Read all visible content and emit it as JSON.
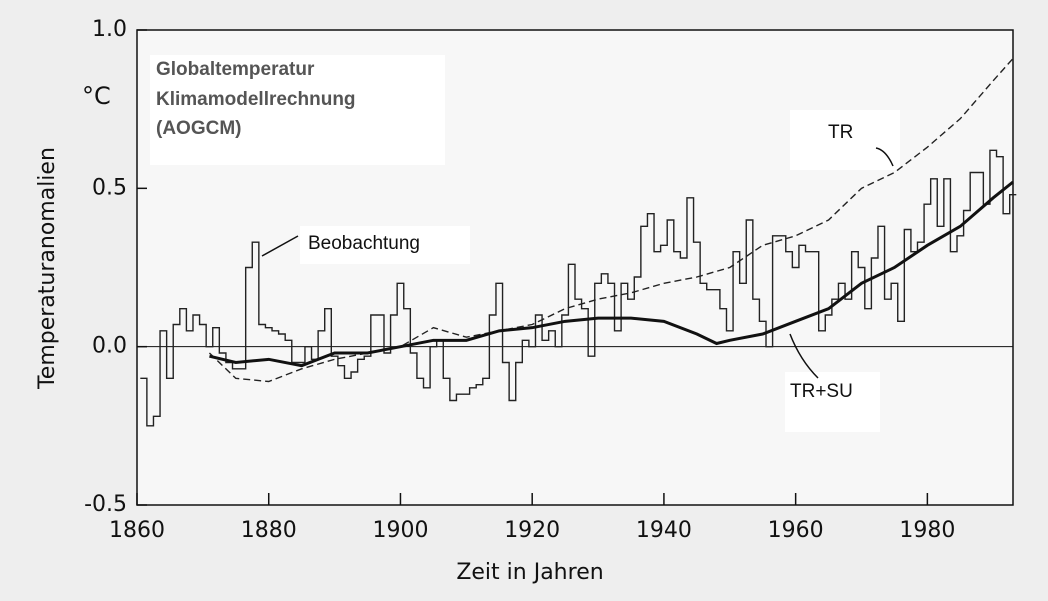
{
  "chart_data": {
    "type": "line",
    "title": [
      "Globaltemperatur",
      "Klimamodellrechnung",
      "(AOGCM)"
    ],
    "y_unit": "°C",
    "y_label": "Temperaturanomalien",
    "x_label": "Zeit in Jahren",
    "xlim": [
      1860,
      1993
    ],
    "xticks": [
      1860,
      1880,
      1900,
      1920,
      1940,
      1960,
      1980
    ],
    "ylim": [
      -0.5,
      1.0
    ],
    "yticks": [
      -0.5,
      {
        "value": 0,
        "label": "0.0"
      },
      0.5,
      {
        "value": 1,
        "label": "1.0"
      }
    ],
    "series": [
      {
        "name": "Beobachtung",
        "color": "#222222",
        "style": "step",
        "x": [
          1861,
          1862,
          1863,
          1864,
          1865,
          1866,
          1867,
          1868,
          1869,
          1870,
          1871,
          1872,
          1873,
          1874,
          1875,
          1876,
          1877,
          1878,
          1879,
          1880,
          1881,
          1882,
          1883,
          1884,
          1885,
          1886,
          1887,
          1888,
          1889,
          1890,
          1891,
          1892,
          1893,
          1894,
          1895,
          1896,
          1897,
          1898,
          1899,
          1900,
          1901,
          1902,
          1903,
          1904,
          1905,
          1906,
          1907,
          1908,
          1909,
          1910,
          1911,
          1912,
          1913,
          1914,
          1915,
          1916,
          1917,
          1918,
          1919,
          1920,
          1921,
          1922,
          1923,
          1924,
          1925,
          1926,
          1927,
          1928,
          1929,
          1930,
          1931,
          1932,
          1933,
          1934,
          1935,
          1936,
          1937,
          1938,
          1939,
          1940,
          1941,
          1942,
          1943,
          1944,
          1945,
          1946,
          1947,
          1948,
          1949,
          1950,
          1951,
          1952,
          1953,
          1954,
          1955,
          1956,
          1957,
          1958,
          1959,
          1960,
          1961,
          1962,
          1963,
          1964,
          1965,
          1966,
          1967,
          1968,
          1969,
          1970,
          1971,
          1972,
          1973,
          1974,
          1975,
          1976,
          1977,
          1978,
          1979,
          1980,
          1981,
          1982,
          1983,
          1984,
          1985,
          1986,
          1987,
          1988,
          1989,
          1990,
          1991,
          1992,
          1993
        ],
        "values": [
          -0.1,
          -0.25,
          -0.22,
          0.05,
          -0.1,
          0.07,
          0.12,
          0.05,
          0.1,
          0.07,
          0.0,
          0.06,
          -0.02,
          -0.05,
          -0.07,
          -0.07,
          0.25,
          0.33,
          0.07,
          0.06,
          0.05,
          0.04,
          0.02,
          -0.05,
          -0.05,
          0.0,
          -0.04,
          0.05,
          0.12,
          -0.03,
          -0.06,
          -0.1,
          -0.08,
          -0.04,
          -0.03,
          0.1,
          0.1,
          -0.02,
          0.1,
          0.2,
          0.12,
          -0.02,
          -0.1,
          -0.13,
          0.0,
          0.02,
          -0.1,
          -0.17,
          -0.15,
          -0.15,
          -0.13,
          -0.12,
          -0.1,
          0.1,
          0.2,
          -0.05,
          -0.17,
          -0.05,
          0.02,
          0.0,
          0.1,
          0.02,
          0.05,
          0.0,
          0.1,
          0.26,
          0.15,
          0.12,
          -0.03,
          0.2,
          0.23,
          0.2,
          0.05,
          0.2,
          0.15,
          0.22,
          0.38,
          0.42,
          0.3,
          0.32,
          0.4,
          0.3,
          0.28,
          0.47,
          0.33,
          0.2,
          0.18,
          0.18,
          0.12,
          0.05,
          0.3,
          0.2,
          0.4,
          0.15,
          0.08,
          0.0,
          0.35,
          0.35,
          0.3,
          0.25,
          0.32,
          0.3,
          0.3,
          0.05,
          0.1,
          0.15,
          0.2,
          0.15,
          0.3,
          0.25,
          0.12,
          0.28,
          0.38,
          0.15,
          0.2,
          0.08,
          0.37,
          0.3,
          0.33,
          0.45,
          0.53,
          0.38,
          0.53,
          0.3,
          0.35,
          0.43,
          0.55,
          0.55,
          0.45,
          0.62,
          0.6,
          0.42,
          0.48
        ]
      },
      {
        "name": "TR",
        "color": "#222222",
        "style": "dashed",
        "x": [
          1871,
          1875,
          1880,
          1885,
          1890,
          1895,
          1900,
          1905,
          1910,
          1915,
          1920,
          1925,
          1930,
          1935,
          1940,
          1945,
          1950,
          1955,
          1960,
          1965,
          1970,
          1975,
          1980,
          1985,
          1990,
          1993
        ],
        "values": [
          -0.02,
          -0.1,
          -0.11,
          -0.07,
          -0.04,
          -0.02,
          0.0,
          0.06,
          0.03,
          0.05,
          0.07,
          0.12,
          0.15,
          0.17,
          0.2,
          0.22,
          0.25,
          0.32,
          0.35,
          0.4,
          0.5,
          0.55,
          0.63,
          0.72,
          0.84,
          0.91
        ]
      },
      {
        "name": "TR+SU",
        "color": "#111111",
        "style": "thick",
        "x": [
          1871,
          1875,
          1880,
          1885,
          1890,
          1895,
          1900,
          1905,
          1910,
          1915,
          1920,
          1925,
          1930,
          1935,
          1940,
          1945,
          1948,
          1950,
          1955,
          1960,
          1965,
          1970,
          1975,
          1980,
          1985,
          1990,
          1993
        ],
        "values": [
          -0.03,
          -0.05,
          -0.04,
          -0.06,
          -0.02,
          -0.02,
          0.0,
          0.02,
          0.02,
          0.05,
          0.06,
          0.08,
          0.09,
          0.09,
          0.08,
          0.04,
          0.01,
          0.02,
          0.04,
          0.08,
          0.12,
          0.2,
          0.25,
          0.32,
          0.38,
          0.47,
          0.52
        ]
      }
    ]
  }
}
